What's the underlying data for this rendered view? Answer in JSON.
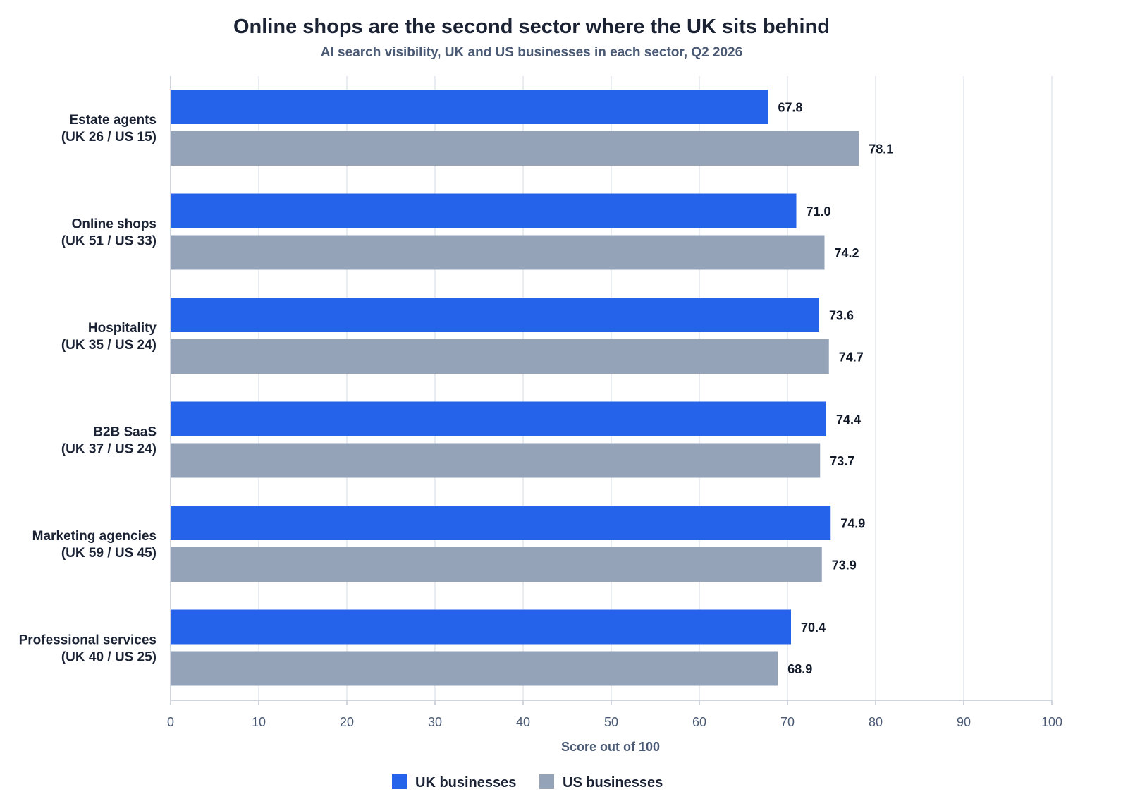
{
  "chart_data": {
    "type": "bar",
    "orientation": "horizontal",
    "title": "Online shops are the second sector where the UK sits behind",
    "subtitle": "AI search visibility, UK and US businesses in each sector, Q2 2026",
    "xlabel": "Score out of 100",
    "ylabel": "",
    "xlim": [
      0,
      100
    ],
    "xticks": [
      0,
      10,
      20,
      30,
      40,
      50,
      60,
      70,
      80,
      90,
      100
    ],
    "grid": true,
    "legend_position": "bottom-center",
    "categories": [
      {
        "name": "Estate agents",
        "counts": "(UK 26 / US 15)"
      },
      {
        "name": "Online shops",
        "counts": "(UK 51 / US 33)"
      },
      {
        "name": "Hospitality",
        "counts": "(UK 35 / US 24)"
      },
      {
        "name": "B2B SaaS",
        "counts": "(UK 37 / US 24)"
      },
      {
        "name": "Marketing agencies",
        "counts": "(UK 59 / US 45)"
      },
      {
        "name": "Professional services",
        "counts": "(UK 40 / US 25)"
      }
    ],
    "series": [
      {
        "name": "UK businesses",
        "color": "#2563eb",
        "values": [
          67.8,
          71.0,
          73.6,
          74.4,
          74.9,
          70.4
        ],
        "labels": [
          "67.8",
          "71.0",
          "73.6",
          "74.4",
          "74.9",
          "70.4"
        ]
      },
      {
        "name": "US businesses",
        "color": "#94a3b8",
        "values": [
          78.1,
          74.2,
          74.7,
          73.7,
          73.9,
          68.9
        ],
        "labels": [
          "78.1",
          "74.2",
          "74.7",
          "73.7",
          "73.9",
          "68.9"
        ]
      }
    ]
  }
}
